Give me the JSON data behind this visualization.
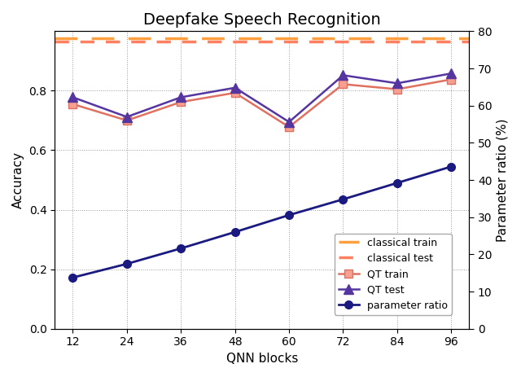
{
  "title": "Deepfake Speech Recognition",
  "xlabel": "QNN blocks",
  "ylabel_left": "Accuracy",
  "ylabel_right": "Parameter ratio (%)",
  "x": [
    12,
    24,
    36,
    48,
    60,
    72,
    84,
    96
  ],
  "qt_train": [
    0.755,
    0.7,
    0.762,
    0.793,
    0.678,
    0.822,
    0.805,
    0.838
  ],
  "qt_test": [
    0.778,
    0.712,
    0.778,
    0.81,
    0.695,
    0.852,
    0.825,
    0.858
  ],
  "classical_train": 0.975,
  "classical_test": 0.966,
  "param_ratio_left": [
    0.172,
    0.218,
    0.27,
    0.325,
    0.382,
    0.435,
    0.49,
    0.545
  ],
  "color_classical_train": "#FFA040",
  "color_classical_test": "#FF8060",
  "color_qt_train": "#E07060",
  "color_qt_train_marker": "#F5A090",
  "color_qt_test": "#5535A0",
  "color_param": "#1A1A80",
  "ylim_left": [
    0.0,
    1.0
  ],
  "ylim_right": [
    0,
    80
  ],
  "yticks_left": [
    0.0,
    0.2,
    0.4,
    0.6,
    0.8
  ],
  "yticks_right": [
    0,
    10,
    20,
    30,
    40,
    50,
    60,
    70,
    80
  ],
  "figsize": [
    6.4,
    4.63
  ],
  "dpi": 100,
  "bg_color": "#f5f5f0"
}
